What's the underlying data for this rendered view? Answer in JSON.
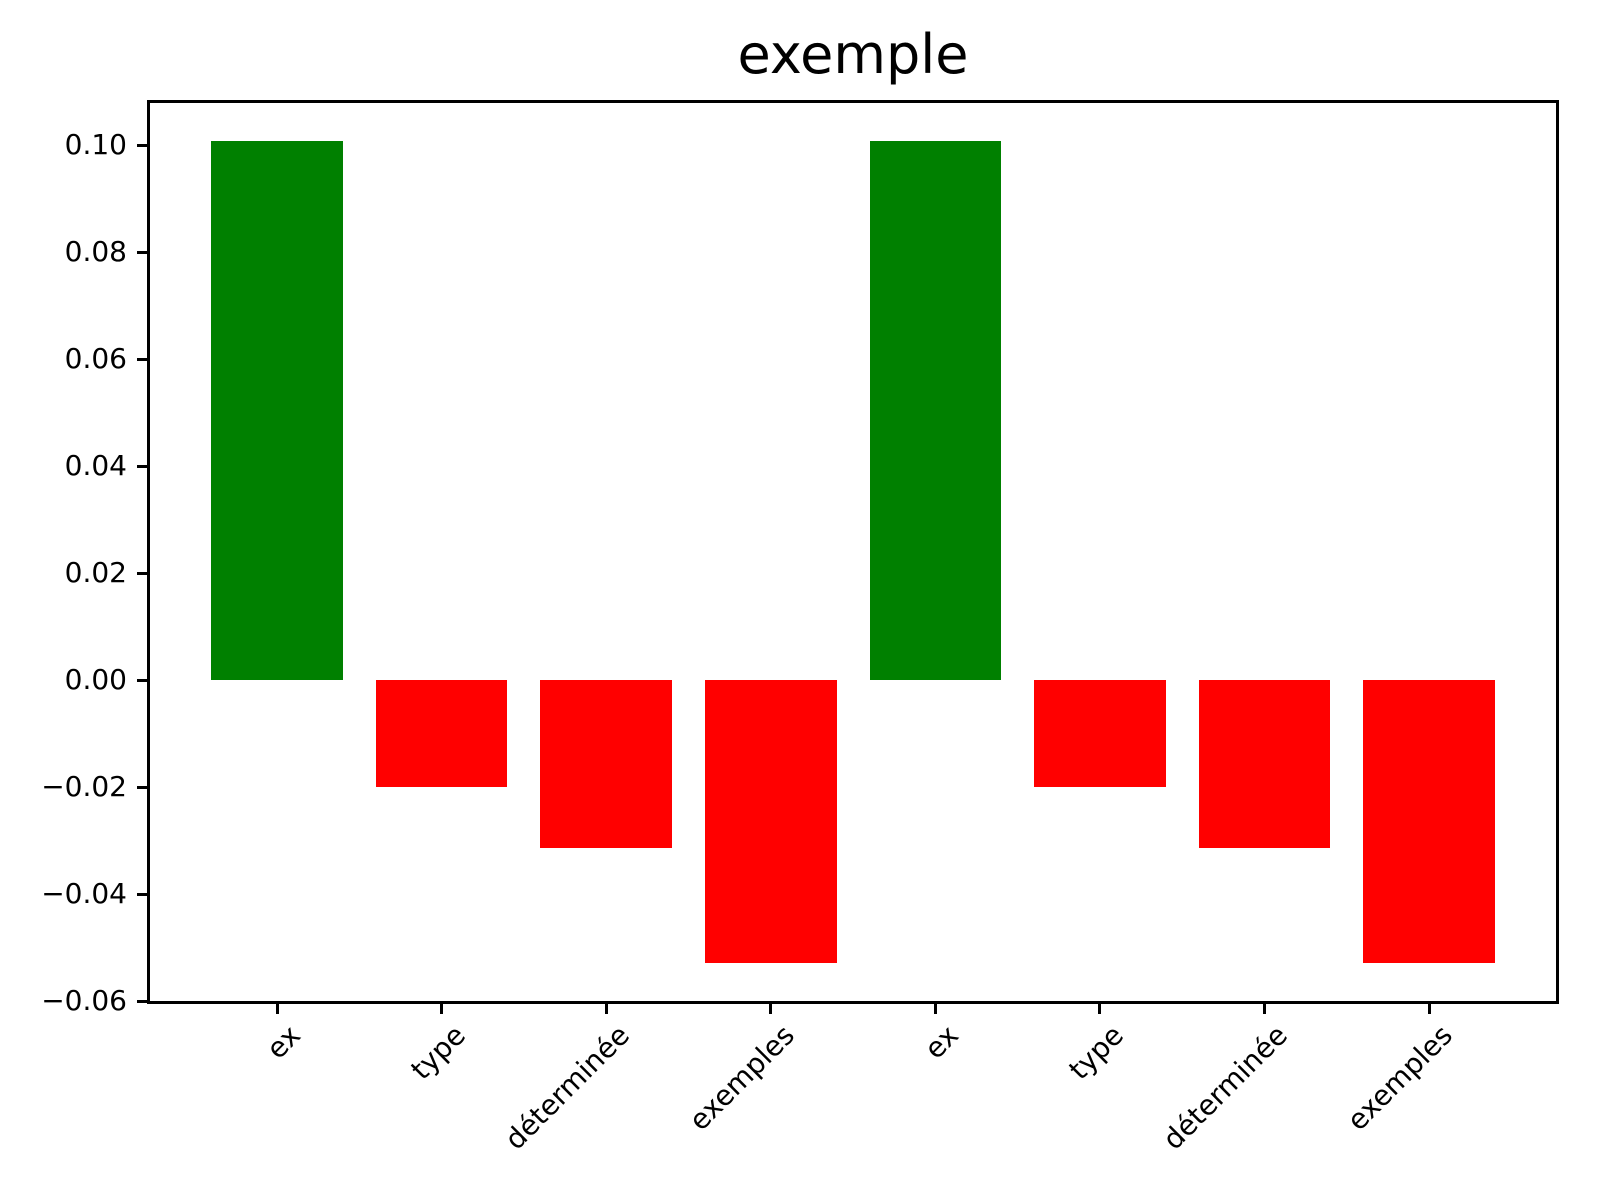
{
  "title": "exemple",
  "chart_data": {
    "type": "bar",
    "title": "exemple",
    "categories": [
      "ex",
      "type",
      "déterminée",
      "exemples",
      "ex",
      "type",
      "déterminée",
      "exemples"
    ],
    "values": [
      0.1007,
      -0.0199,
      -0.0313,
      -0.0528,
      0.1007,
      -0.0199,
      -0.0313,
      -0.0528
    ],
    "bar_colors": [
      "#008000",
      "#ff0000",
      "#ff0000",
      "#ff0000",
      "#008000",
      "#ff0000",
      "#ff0000",
      "#ff0000"
    ],
    "positive_color": "#008000",
    "negative_color": "#ff0000",
    "xlabel": "",
    "ylabel": "",
    "yticks": [
      0.1,
      0.08,
      0.06,
      0.04,
      0.02,
      0.0,
      -0.02,
      -0.04,
      -0.06
    ],
    "ytick_labels": [
      "0.10",
      "0.08",
      "0.06",
      "0.04",
      "0.02",
      "0.00",
      "−0.02",
      "−0.04",
      "−0.06"
    ],
    "ylim": [
      -0.0605,
      0.1084
    ],
    "xlim": [
      -0.79,
      7.79
    ],
    "bar_width": 0.8,
    "xtick_rotation": 45,
    "grid": false,
    "legend_position": "none",
    "spine_color": "#000000",
    "background_color": "#ffffff"
  }
}
